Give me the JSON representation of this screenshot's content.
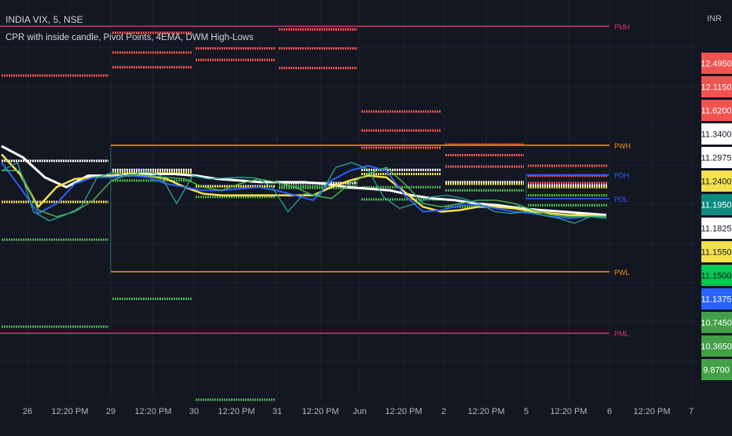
{
  "header": {
    "symbol": "INDIA VIX, 5, NSE",
    "indicators": "CPR with inside candle, Pivot Points, 4EMA, DWM High-Lows"
  },
  "currency": "INR",
  "colors": {
    "background": "#131722",
    "grid": "#1e222d",
    "axis_text": "#b2b5be",
    "pivot_resistance": "#f05350",
    "pivot_support": "#4caf50",
    "pivot_central": "#ffffff",
    "pivot_bc": "#f5e050",
    "prev_week": "#f0951f",
    "prev_month": "#d7336f",
    "prev_day": "#2962ff",
    "price": "#26a69a",
    "ema_white": "#ffffff",
    "ema_yellow": "#f5e050",
    "ema_blue": "#2962ff",
    "ema_green": "#4caf50"
  },
  "chart_data": {
    "type": "line",
    "ylim": [
      9.7,
      12.75
    ],
    "x_tick_labels": [
      "26",
      "12:20 PM",
      "29",
      "12:20 PM",
      "30",
      "12:20 PM",
      "31",
      "12:20 PM",
      "Jun",
      "12:20 PM",
      "2",
      "12:20 PM",
      "5",
      "12:20 PM",
      "6",
      "12:20 PM",
      "7"
    ],
    "days": [
      {
        "label": "26",
        "r3": 12.52,
        "r2": 12.385,
        "r1": 11.88,
        "pp": 11.36,
        "bc": 11.11,
        "s1": 10.88,
        "s2": 10.35
      },
      {
        "label": "29",
        "r3": 12.14,
        "r2": 12.02,
        "r1": 11.93,
        "pp": 11.305,
        "bc": 11.29,
        "s1": 11.24,
        "s2": 10.52
      },
      {
        "label": "30",
        "r3": 12.57,
        "r2": 12.045,
        "r1": 11.975,
        "pp": 11.205,
        "bc": 11.205,
        "s1": 11.14,
        "s2": 9.905
      },
      {
        "label": "31",
        "r3": 12.16,
        "r2": 12.045,
        "r1": 11.925,
        "pp": 11.225,
        "bc": 11.205,
        "s1": 11.205,
        "s2": 11.195
      },
      {
        "label": "Jun",
        "r3": 11.66,
        "r2": 11.545,
        "r1": 11.44,
        "pp": 11.305,
        "bc": 11.28,
        "s1": 11.2,
        "s2": 11.125
      },
      {
        "label": "2",
        "r3": 11.46,
        "r2": 11.395,
        "r1": 11.325,
        "pp": 11.23,
        "bc": 11.22,
        "s1": 11.18,
        "s2": 11.08
      },
      {
        "label": "5",
        "r3": 11.33,
        "r2": 11.27,
        "r1": 11.225,
        "pp": 11.21,
        "bc": 11.2,
        "s1": 11.15,
        "s2": 11.09
      }
    ],
    "levels": [
      {
        "name": "PMH",
        "value": 12.18
      },
      {
        "name": "PWH",
        "value": 11.455
      },
      {
        "name": "PDH",
        "value": 11.275
      },
      {
        "name": "PDL",
        "value": 11.13
      },
      {
        "name": "PWL",
        "value": 10.685
      },
      {
        "name": "PML",
        "value": 10.31
      }
    ],
    "series": [
      {
        "values": [
          11.3,
          11.35,
          11.05,
          10.995,
          11.03,
          11.08,
          11.26,
          11.29,
          11.265,
          11.3,
          11.27,
          11.1,
          11.27,
          11.25,
          11.255,
          11.26,
          11.255,
          11.2,
          11.05,
          11.16,
          11.15,
          11.32,
          11.35,
          11.31,
          11.14,
          11.07,
          11.1,
          11.14,
          11.15,
          11.13,
          11.1,
          11.05,
          11.04,
          11.05,
          11.03,
          11.01,
          10.98,
          11.02,
          11.01
        ]
      },
      {
        "values": [
          11.45,
          11.38,
          11.26,
          11.2,
          11.27,
          11.27,
          11.28,
          11.28,
          11.28,
          11.27,
          11.25,
          11.24,
          11.23,
          11.23,
          11.23,
          11.22,
          11.2,
          11.19,
          11.18,
          11.15,
          11.13,
          11.12,
          11.1,
          11.09,
          11.07,
          11.06,
          11.05,
          11.04,
          11.03
        ]
      },
      {
        "values": [
          11.4,
          11.28,
          11.08,
          11.2,
          11.25,
          11.26,
          11.27,
          11.27,
          11.27,
          11.25,
          11.2,
          11.16,
          11.15,
          11.15,
          11.15,
          11.15,
          11.15,
          11.15,
          11.2,
          11.24,
          11.27,
          11.26,
          11.17,
          11.08,
          11.05,
          11.06,
          11.08,
          11.08,
          11.07,
          11.05,
          11.04,
          11.03,
          11.03,
          11.02
        ]
      },
      {
        "values": [
          11.35,
          11.2,
          11.04,
          11.1,
          11.22,
          11.26,
          11.26,
          11.27,
          11.26,
          11.22,
          11.2,
          11.18,
          11.18,
          11.19,
          11.2,
          11.18,
          11.15,
          11.12,
          11.24,
          11.3,
          11.33,
          11.3,
          11.15,
          11.05,
          11.06,
          11.09,
          11.09,
          11.07,
          11.05,
          11.04,
          11.02,
          11.01,
          11.02,
          11.02
        ]
      },
      {
        "values": [
          11.3,
          11.3,
          11.06,
          11.02,
          11.05,
          11.12,
          11.24,
          11.28,
          11.27,
          11.26,
          11.25,
          11.2,
          11.18,
          11.22,
          11.25,
          11.23,
          11.2,
          11.15,
          11.13,
          11.22,
          11.28,
          11.32,
          11.22,
          11.1,
          11.08,
          11.1,
          11.12,
          11.12,
          11.1,
          11.06,
          11.03,
          11.02,
          11.02,
          11.02
        ]
      }
    ],
    "price_scale_labels": [
      {
        "text": "12.4950",
        "value": 12.495,
        "color": "#f05350"
      },
      {
        "text": "12.1150",
        "value": 12.115,
        "color": "#f05350"
      },
      {
        "text": "11.6200",
        "value": 11.62,
        "color": "#f05350"
      },
      {
        "text": "11.3400",
        "value": 11.34,
        "color": "#ffffff"
      },
      {
        "text": "11.2975",
        "value": 11.2975,
        "color": "#ffffff"
      },
      {
        "text": "11.2400",
        "value": 11.24,
        "color": "#f5e050"
      },
      {
        "text": "11.1950",
        "value": 11.195,
        "color": "#0f8a7e"
      },
      {
        "text": "11.1825",
        "value": 11.1825,
        "color": "#ffffff"
      },
      {
        "text": "11.1550",
        "value": 11.155,
        "color": "#f5e050"
      },
      {
        "text": "11.1500",
        "value": 11.15,
        "color": "#00c853"
      },
      {
        "text": "11.1375",
        "value": 11.1375,
        "color": "#2962ff"
      },
      {
        "text": "10.7450",
        "value": 10.745,
        "color": "#43a047"
      },
      {
        "text": "10.3650",
        "value": 10.365,
        "color": "#43a047"
      },
      {
        "text": "9.8700",
        "value": 9.87,
        "color": "#43a047"
      }
    ]
  }
}
